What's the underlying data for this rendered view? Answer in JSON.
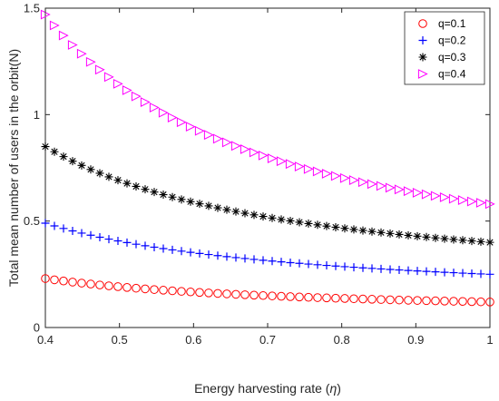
{
  "chart_data": {
    "type": "scatter",
    "xlabel_main": "Energy harvesting rate (",
    "xlabel_symbol": "η",
    "xlabel_end": ")",
    "ylabel": "Total mean number of users in the orbit(N)",
    "xlim": [
      0.4,
      1.0
    ],
    "ylim": [
      0,
      1.5
    ],
    "xticks": [
      "0.4",
      "0.5",
      "0.6",
      "0.7",
      "0.8",
      "0.9",
      "1"
    ],
    "yticks": [
      "0",
      "0.5",
      "1",
      "1.5"
    ],
    "grid": false,
    "legend_position": "top-right",
    "n_points": 50,
    "x_start": 0.4,
    "x_end": 1.0,
    "series": [
      {
        "name": "q=0.1",
        "marker": "circle",
        "color": "#ff0000",
        "y_at_start": 0.23,
        "y_at_end": 0.12,
        "shape_exponent": 1.2
      },
      {
        "name": "q=0.2",
        "marker": "plus",
        "color": "#0000ff",
        "y_at_start": 0.49,
        "y_at_end": 0.25,
        "shape_exponent": 1.2
      },
      {
        "name": "q=0.3",
        "marker": "asterisk",
        "color": "#000000",
        "y_at_start": 0.85,
        "y_at_end": 0.4,
        "shape_exponent": 1.25
      },
      {
        "name": "q=0.4",
        "marker": "triangle-right",
        "color": "#ff00ff",
        "y_at_start": 1.47,
        "y_at_end": 0.58,
        "shape_exponent": 1.4
      }
    ]
  }
}
